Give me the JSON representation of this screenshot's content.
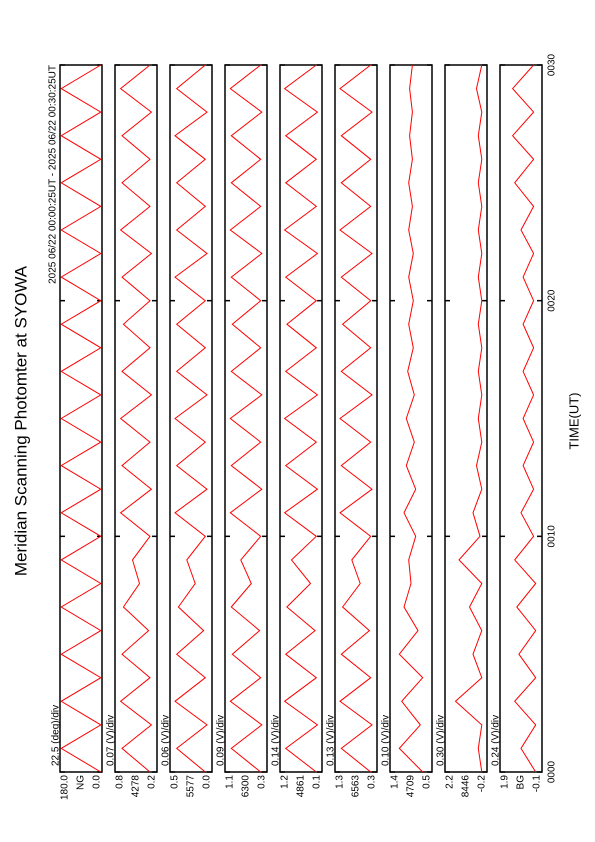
{
  "chart_data": {
    "type": "line",
    "title": "Meridian Scanning Photomter at SYOWA",
    "subtitle": "2025 06/22 00:00:25UT - 2025 06/22 00:30:25UT",
    "xlabel": "TIME(UT)",
    "color": "#ff0000",
    "x": [
      0,
      1,
      2,
      3,
      4,
      5,
      6,
      7,
      8,
      9,
      10,
      11,
      12,
      13,
      14,
      15,
      16,
      17,
      18,
      19,
      20,
      21,
      22,
      23,
      24,
      25,
      26,
      27,
      28,
      29,
      30
    ],
    "xlim": [
      0,
      30
    ],
    "xticks": [
      {
        "value": 0,
        "label": "0000"
      },
      {
        "value": 10,
        "label": "0010"
      },
      {
        "value": 20,
        "label": "0020"
      },
      {
        "value": 30,
        "label": "0030"
      }
    ],
    "panels": [
      {
        "channel": "NG",
        "scale": "22.5 (deg)/div",
        "ylim": [
          0,
          180
        ],
        "yticks": [
          {
            "value": 180,
            "label": "180.0"
          },
          {
            "value": 0,
            "label": "0.0"
          }
        ],
        "values": [
          5,
          175,
          5,
          175,
          5,
          175,
          5,
          175,
          5,
          175,
          5,
          175,
          5,
          175,
          5,
          175,
          5,
          175,
          5,
          175,
          5,
          175,
          5,
          175,
          5,
          175,
          5,
          175,
          5,
          175,
          5
        ]
      },
      {
        "channel": "4278",
        "scale": "0.07 (V)/div",
        "ylim": [
          0.2,
          0.8
        ],
        "yticks": [
          0.8,
          0.2
        ],
        "values": [
          0.3,
          0.7,
          0.28,
          0.72,
          0.3,
          0.7,
          0.32,
          0.68,
          0.45,
          0.55,
          0.3,
          0.72,
          0.28,
          0.7,
          0.3,
          0.72,
          0.28,
          0.7,
          0.3,
          0.68,
          0.3,
          0.7,
          0.28,
          0.72,
          0.3,
          0.7,
          0.3,
          0.7,
          0.28,
          0.72,
          0.3
        ]
      },
      {
        "channel": "5577",
        "scale": "0.06 (V)/div",
        "ylim": [
          0,
          0.5
        ],
        "yticks": [
          0.5,
          {
            "value": 0,
            "label": "0.0"
          }
        ],
        "values": [
          0.08,
          0.42,
          0.06,
          0.44,
          0.08,
          0.42,
          0.1,
          0.4,
          0.2,
          0.3,
          0.08,
          0.44,
          0.06,
          0.42,
          0.08,
          0.44,
          0.06,
          0.42,
          0.08,
          0.42,
          0.08,
          0.44,
          0.06,
          0.42,
          0.08,
          0.42,
          0.08,
          0.44,
          0.06,
          0.42,
          0.08
        ]
      },
      {
        "channel": "6300",
        "scale": "0.09 (V)/div",
        "ylim": [
          0.3,
          1.1
        ],
        "yticks": [
          1.1,
          0.3
        ],
        "values": [
          0.42,
          0.98,
          0.4,
          1.0,
          0.42,
          0.96,
          0.44,
          0.98,
          0.6,
          0.8,
          0.42,
          1.0,
          0.4,
          0.98,
          0.42,
          1.0,
          0.4,
          0.98,
          0.42,
          0.96,
          0.42,
          0.98,
          0.4,
          1.0,
          0.42,
          0.98,
          0.42,
          0.98,
          0.4,
          1.0,
          0.42
        ]
      },
      {
        "channel": "4861",
        "scale": "0.14 (V)/div",
        "ylim": [
          0.1,
          1.2
        ],
        "yticks": [
          1.2,
          0.1
        ],
        "values": [
          0.25,
          1.05,
          0.22,
          1.08,
          0.25,
          1.05,
          0.28,
          1.02,
          0.4,
          0.9,
          0.25,
          1.08,
          0.22,
          1.05,
          0.25,
          1.08,
          0.22,
          1.05,
          0.25,
          1.02,
          0.25,
          1.05,
          0.22,
          1.08,
          0.25,
          1.05,
          0.25,
          1.05,
          0.22,
          1.08,
          0.25
        ]
      },
      {
        "channel": "6563",
        "scale": "0.13 (V)/div",
        "ylim": [
          0.3,
          1.3
        ],
        "yticks": [
          1.3,
          0.3
        ],
        "values": [
          0.45,
          1.15,
          0.42,
          1.18,
          0.45,
          1.15,
          0.48,
          1.12,
          0.7,
          0.9,
          0.45,
          1.18,
          0.42,
          1.15,
          0.45,
          1.18,
          0.42,
          1.15,
          0.45,
          1.12,
          0.45,
          1.15,
          0.42,
          1.18,
          0.45,
          1.15,
          0.45,
          1.15,
          0.42,
          1.18,
          0.45
        ]
      },
      {
        "channel": "4709",
        "scale": "0.10 (V)/div",
        "ylim": [
          0.5,
          1.4
        ],
        "yticks": [
          1.4,
          0.5
        ],
        "values": [
          0.7,
          1.2,
          0.75,
          1.15,
          0.7,
          1.2,
          0.8,
          1.1,
          0.95,
          1.0,
          0.85,
          1.1,
          0.85,
          1.05,
          0.88,
          1.05,
          0.88,
          1.02,
          0.9,
          1.0,
          0.9,
          1.0,
          0.9,
          1.0,
          0.92,
          1.0,
          0.92,
          0.98,
          0.92,
          0.98,
          0.92
        ]
      },
      {
        "channel": "8446",
        "scale": "0.30 (V)/div",
        "ylim": [
          -0.2,
          2.2
        ],
        "yticks": [
          2.2,
          -0.2
        ],
        "values": [
          0.1,
          0.3,
          0.1,
          1.6,
          0.1,
          0.6,
          0.1,
          0.8,
          0.1,
          1.4,
          0.2,
          0.6,
          0.1,
          0.4,
          0.1,
          0.3,
          0.1,
          0.3,
          0.1,
          0.3,
          0.1,
          0.3,
          0.1,
          0.3,
          0.1,
          0.3,
          0.1,
          0.3,
          0.1,
          0.4,
          0.1
        ]
      },
      {
        "channel": "BG",
        "scale": "0.24 (V)/div",
        "ylim": [
          -0.1,
          1.9
        ],
        "yticks": [
          1.9,
          -0.1
        ],
        "values": [
          0.2,
          0.9,
          0.2,
          1.2,
          0.2,
          1.0,
          0.2,
          1.1,
          0.2,
          1.2,
          0.3,
          0.9,
          0.3,
          0.8,
          0.3,
          0.8,
          0.3,
          0.8,
          0.3,
          0.8,
          0.3,
          0.8,
          0.3,
          0.9,
          0.3,
          1.2,
          0.3,
          1.3,
          0.3,
          1.3,
          0.3
        ]
      }
    ]
  }
}
